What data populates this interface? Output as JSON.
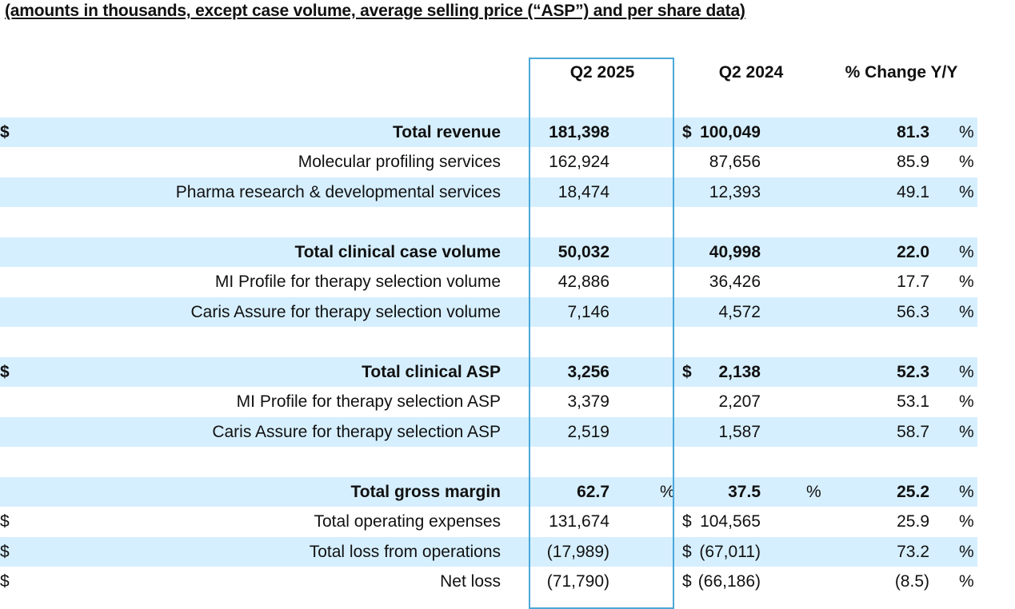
{
  "heading": "(amounts in thousands, except case volume, average selling price (“ASP”) and per share data)",
  "columns": {
    "q2_2025": "Q2 2025",
    "q2_2024": "Q2 2024",
    "change": "% Change Y/Y"
  },
  "colors": {
    "shade": "#d6efff",
    "box": "#4aa8d8"
  },
  "rows": [
    {
      "label": "Total revenue",
      "cur25": "$",
      "v25": "181,398",
      "p25": "",
      "cur24": "$",
      "v24": "100,049",
      "p24": "",
      "chg": "81.3",
      "pchg": "%"
    },
    {
      "label": "Molecular profiling services",
      "cur25": "",
      "v25": "162,924",
      "p25": "",
      "cur24": "",
      "v24": "87,656",
      "p24": "",
      "chg": "85.9",
      "pchg": "%"
    },
    {
      "label": "Pharma research & developmental services",
      "cur25": "",
      "v25": "18,474",
      "p25": "",
      "cur24": "",
      "v24": "12,393",
      "p24": "",
      "chg": "49.1",
      "pchg": "%"
    },
    {
      "label": "Total clinical case volume",
      "cur25": "",
      "v25": "50,032",
      "p25": "",
      "cur24": "",
      "v24": "40,998",
      "p24": "",
      "chg": "22.0",
      "pchg": "%"
    },
    {
      "label": "MI Profile for therapy selection volume",
      "cur25": "",
      "v25": "42,886",
      "p25": "",
      "cur24": "",
      "v24": "36,426",
      "p24": "",
      "chg": "17.7",
      "pchg": "%"
    },
    {
      "label": "Caris Assure for therapy selection volume",
      "cur25": "",
      "v25": "7,146",
      "p25": "",
      "cur24": "",
      "v24": "4,572",
      "p24": "",
      "chg": "56.3",
      "pchg": "%"
    },
    {
      "label": "Total clinical ASP",
      "cur25": "$",
      "v25": "3,256",
      "p25": "",
      "cur24": "$",
      "v24": "2,138",
      "p24": "",
      "chg": "52.3",
      "pchg": "%"
    },
    {
      "label": "MI Profile for therapy selection ASP",
      "cur25": "",
      "v25": "3,379",
      "p25": "",
      "cur24": "",
      "v24": "2,207",
      "p24": "",
      "chg": "53.1",
      "pchg": "%"
    },
    {
      "label": "Caris Assure for therapy selection ASP",
      "cur25": "",
      "v25": "2,519",
      "p25": "",
      "cur24": "",
      "v24": "1,587",
      "p24": "",
      "chg": "58.7",
      "pchg": "%"
    },
    {
      "label": "Total gross margin",
      "cur25": "",
      "v25": "62.7",
      "p25": "%",
      "cur24": "",
      "v24": "37.5",
      "p24": "%",
      "chg": "25.2",
      "pchg": "%"
    },
    {
      "label": "Total operating expenses",
      "cur25": "$",
      "v25": "131,674",
      "p25": "",
      "cur24": "$",
      "v24": "104,565",
      "p24": "",
      "chg": "25.9",
      "pchg": "%"
    },
    {
      "label": "Total loss from operations",
      "cur25": "$",
      "v25": "(17,989)",
      "p25": "",
      "cur24": "$",
      "v24": "(67,011)",
      "p24": "",
      "chg": "73.2",
      "pchg": "%"
    },
    {
      "label": "Net loss",
      "cur25": "$",
      "v25": "(71,790)",
      "p25": "",
      "cur24": "$",
      "v24": "(66,186)",
      "p24": "",
      "chg": "(8.5)",
      "pchg": "%"
    }
  ]
}
